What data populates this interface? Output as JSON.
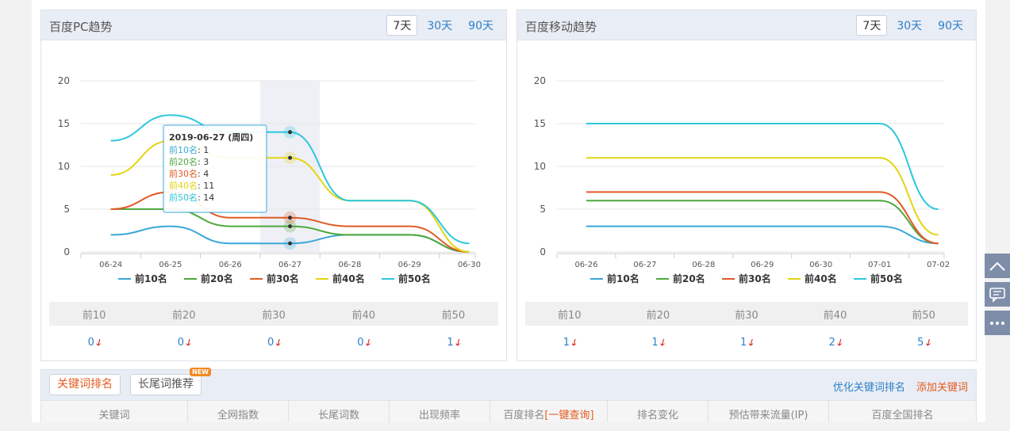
{
  "pc": {
    "title": "百度PC趋势",
    "ranges": [
      "7天",
      "30天",
      "90天"
    ],
    "active_range": "7天",
    "stats_headers": [
      "前10",
      "前20",
      "前30",
      "前40",
      "前50"
    ],
    "stats_values": [
      "0",
      "0",
      "0",
      "0",
      "1"
    ]
  },
  "mobile": {
    "title": "百度移动趋势",
    "ranges": [
      "7天",
      "30天",
      "90天"
    ],
    "active_range": "7天",
    "stats_headers": [
      "前10",
      "前20",
      "前30",
      "前40",
      "前50"
    ],
    "stats_values": [
      "1",
      "1",
      "1",
      "2",
      "5"
    ]
  },
  "tooltip": {
    "date": "2019-06-27 (周四)",
    "rows": [
      "前10名: 1",
      "前20名: 3",
      "前30名: 4",
      "前40名: 11",
      "前50名: 14"
    ]
  },
  "chart_data": [
    {
      "type": "line",
      "title": "",
      "x": [
        "06-24",
        "06-25",
        "06-26",
        "06-27",
        "06-28",
        "06-29",
        "06-30"
      ],
      "ylim": [
        0,
        20
      ],
      "yticks": [
        0,
        5,
        10,
        15,
        20
      ],
      "grid": true,
      "legend_position": "bottom",
      "series": [
        {
          "name": "前10名",
          "color": "#3aa7d8",
          "values": [
            2,
            3,
            1,
            1,
            2,
            2,
            0
          ]
        },
        {
          "name": "前20名",
          "color": "#4fa83d",
          "values": [
            5,
            5,
            3,
            3,
            2,
            2,
            0
          ]
        },
        {
          "name": "前30名",
          "color": "#e15a26",
          "values": [
            5,
            7,
            4,
            4,
            3,
            3,
            0
          ]
        },
        {
          "name": "前40名",
          "color": "#e3d511",
          "values": [
            9,
            13,
            11,
            11,
            6,
            6,
            0
          ]
        },
        {
          "name": "前50名",
          "color": "#2cc7dd",
          "values": [
            13,
            16,
            14,
            14,
            6,
            6,
            1
          ]
        }
      ]
    },
    {
      "type": "line",
      "title": "",
      "x": [
        "06-26",
        "06-27",
        "06-28",
        "06-29",
        "06-30",
        "07-01",
        "07-02"
      ],
      "ylim": [
        0,
        20
      ],
      "yticks": [
        0,
        5,
        10,
        15,
        20
      ],
      "grid": true,
      "legend_position": "bottom",
      "series": [
        {
          "name": "前10名",
          "color": "#3aa7d8",
          "values": [
            3,
            3,
            3,
            3,
            3,
            3,
            1
          ]
        },
        {
          "name": "前20名",
          "color": "#4fa83d",
          "values": [
            6,
            6,
            6,
            6,
            6,
            6,
            1
          ]
        },
        {
          "name": "前30名",
          "color": "#e15a26",
          "values": [
            7,
            7,
            7,
            7,
            7,
            7,
            1
          ]
        },
        {
          "name": "前40名",
          "color": "#e3d511",
          "values": [
            11,
            11,
            11,
            11,
            11,
            11,
            2
          ]
        },
        {
          "name": "前50名",
          "color": "#2cc7dd",
          "values": [
            15,
            15,
            15,
            15,
            15,
            15,
            5
          ]
        }
      ]
    }
  ],
  "bottom": {
    "tab_keywords": "关键词排名",
    "tab_longtail": "长尾词推荐",
    "new_badge": "NEW",
    "link_optimize": "优化关键词排名",
    "link_add": "添加关键词",
    "columns": [
      "关键词",
      "全网指数",
      "长尾词数",
      "出现频率",
      "百度排名",
      "[一键查询]",
      "排名变化",
      "预估带来流量(IP)",
      "百度全国排名"
    ]
  },
  "side_icons": [
    "chevron-up-icon",
    "comment-icon",
    "more-icon"
  ]
}
